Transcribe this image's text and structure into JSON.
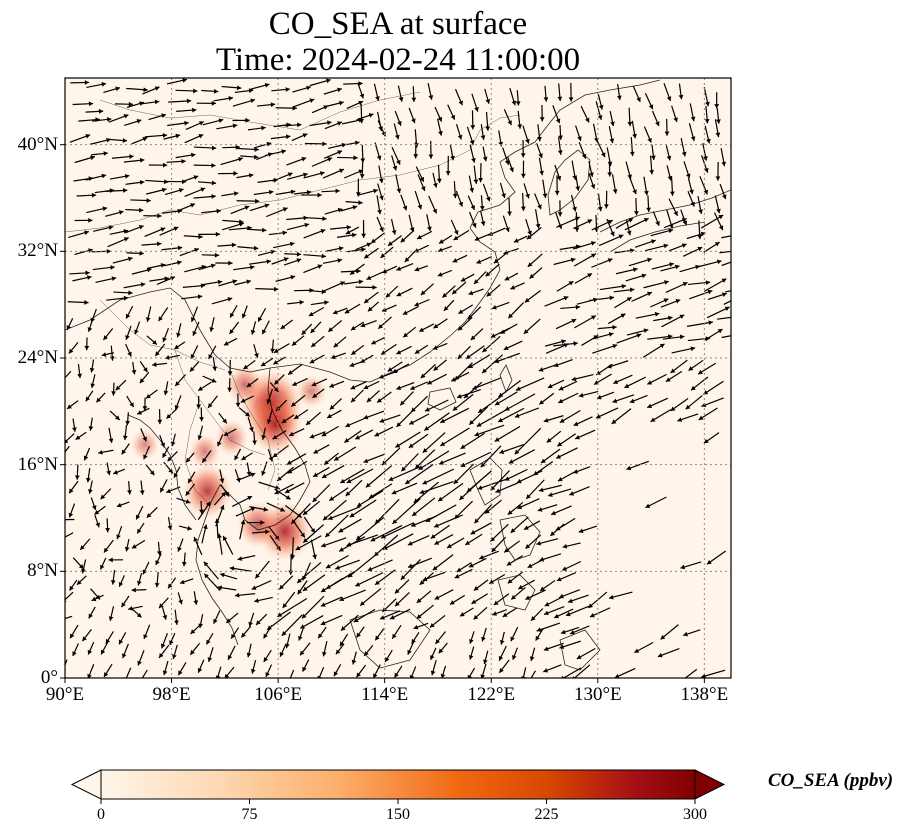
{
  "title_line1": "CO_SEA at surface",
  "title_line2": "Time: 2024-02-24 11:00:00",
  "map": {
    "lon_range": [
      90,
      140
    ],
    "lat_range": [
      0,
      45
    ],
    "lon_ticks": [
      "90°E",
      "98°E",
      "106°E",
      "114°E",
      "122°E",
      "130°E",
      "138°E"
    ],
    "lat_ticks": [
      "0°",
      "8°N",
      "16°N",
      "24°N",
      "32°N",
      "40°N"
    ],
    "gridlines": "dotted",
    "background_color": "#fff5eb",
    "vector_color": "#000000",
    "concentration_hotspots": [
      {
        "lon": 105.5,
        "lat": 20.5,
        "value": 290
      },
      {
        "lon": 105.8,
        "lat": 19.0,
        "value": 230
      },
      {
        "lon": 103.5,
        "lat": 22.0,
        "value": 110
      },
      {
        "lon": 106.5,
        "lat": 11.0,
        "value": 230
      },
      {
        "lon": 104.5,
        "lat": 11.5,
        "value": 150
      },
      {
        "lon": 100.7,
        "lat": 14.0,
        "value": 200
      },
      {
        "lon": 102.5,
        "lat": 18.0,
        "value": 90
      },
      {
        "lon": 100.5,
        "lat": 17.0,
        "value": 80
      },
      {
        "lon": 96.0,
        "lat": 17.5,
        "value": 60
      },
      {
        "lon": 108.5,
        "lat": 21.5,
        "value": 70
      }
    ]
  },
  "colorbar": {
    "label": "CO_SEA (ppbv)",
    "min": 0,
    "max": 300,
    "extend": "both",
    "ticks": [
      "0",
      "75",
      "150",
      "225",
      "300"
    ],
    "colors": [
      "#fff5eb",
      "#fdd8b1",
      "#fdae6b",
      "#f16913",
      "#d94801",
      "#a63603",
      "#7f2704"
    ]
  }
}
